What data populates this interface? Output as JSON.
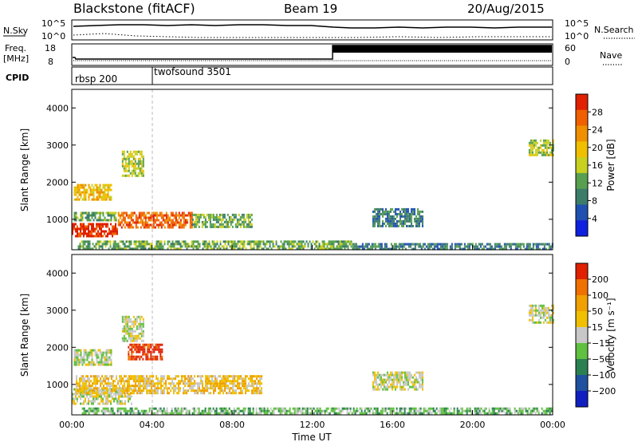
{
  "header": {
    "station": "Blackstone (fitACF)",
    "beam": "Beam 19",
    "date": "20/Aug/2015"
  },
  "params": {
    "nsky_label": "N.Sky",
    "nsearch_label": "N.Search",
    "freq_label_1": "Freq.",
    "freq_label_2": "[MHz]",
    "nave_label": "Nave",
    "cpid_label": "CPID",
    "nsky_ticks": [
      "10^5",
      "10^0"
    ],
    "nsearch_ticks": [
      "10^5",
      "10^0"
    ],
    "freq_ticks": [
      "18",
      "8"
    ],
    "nave_ticks": [
      "60",
      "0"
    ],
    "cpid_segments": [
      {
        "name": "rbsp 200",
        "start_hour": 0
      },
      {
        "name": "twofsound 3501",
        "start_hour": 4
      }
    ]
  },
  "power_colorbar": {
    "label": "Power [dB]",
    "ticks": [
      "28",
      "24",
      "20",
      "16",
      "12",
      "8",
      "4"
    ],
    "colors": [
      "#1020e0",
      "#2050b0",
      "#3c7d6a",
      "#58a050",
      "#c8d020",
      "#f0c000",
      "#f09000",
      "#f06000",
      "#e02000"
    ]
  },
  "velocity_colorbar": {
    "label": "Velocity [m s⁻¹]",
    "ticks": [
      "200",
      "100",
      "50",
      "15",
      "−15",
      "−50",
      "−100",
      "−200"
    ],
    "colors": [
      "#1020c0",
      "#2050a0",
      "#2a8050",
      "#60c040",
      "#c8c8c8",
      "#f0c000",
      "#f0a000",
      "#f07000",
      "#e02000"
    ]
  },
  "chart_data": [
    {
      "type": "heatmap",
      "panel": "power",
      "ylabel": "Slant Range [km]",
      "xlabel": "Time UT",
      "xlim_hours": [
        0,
        24
      ],
      "ylim_km": [
        180,
        4500
      ],
      "x_tick_labels": [
        "00:00",
        "04:00",
        "08:00",
        "12:00",
        "16:00",
        "20:00",
        "00:00"
      ],
      "y_tick_labels": [
        "1000",
        "2000",
        "3000",
        "4000"
      ],
      "y_tick_values": [
        1000,
        2000,
        3000,
        4000
      ],
      "regions": [
        {
          "t0": 0.0,
          "t1": 2.3,
          "r0": 520,
          "r1": 900,
          "level": 8
        },
        {
          "t0": 0.1,
          "t1": 2.2,
          "r0": 1000,
          "r1": 1200,
          "level": 3
        },
        {
          "t0": 0.1,
          "t1": 2.0,
          "r0": 1550,
          "r1": 1950,
          "level": 5
        },
        {
          "t0": 2.3,
          "t1": 6.0,
          "r0": 780,
          "r1": 1200,
          "level": 7
        },
        {
          "t0": 6.0,
          "t1": 9.0,
          "r0": 820,
          "r1": 1150,
          "level": 3
        },
        {
          "t0": 0.3,
          "t1": 14.0,
          "r0": 200,
          "r1": 430,
          "level": 3
        },
        {
          "t0": 14.0,
          "t1": 24.0,
          "r0": 200,
          "r1": 360,
          "level": 2
        },
        {
          "t0": 2.5,
          "t1": 3.6,
          "r0": 2200,
          "r1": 2850,
          "level": 4
        },
        {
          "t0": 15.0,
          "t1": 17.5,
          "r0": 800,
          "r1": 1300,
          "level": 2
        },
        {
          "t0": 22.8,
          "t1": 24.0,
          "r0": 2700,
          "r1": 3150,
          "level": 4
        }
      ]
    },
    {
      "type": "heatmap",
      "panel": "velocity",
      "ylabel": "Slant Range [km]",
      "xlabel": "Time UT",
      "xlim_hours": [
        0,
        24
      ],
      "ylim_km": [
        180,
        4500
      ],
      "x_tick_labels": [
        "00:00",
        "04:00",
        "08:00",
        "12:00",
        "16:00",
        "20:00",
        "00:00"
      ],
      "y_tick_labels": [
        "1000",
        "2000",
        "3000",
        "4000"
      ],
      "y_tick_values": [
        1000,
        2000,
        3000,
        4000
      ],
      "regions": [
        {
          "t0": 0.0,
          "t1": 3.0,
          "r0": 500,
          "r1": 900,
          "level": 4
        },
        {
          "t0": 0.2,
          "t1": 9.5,
          "r0": 780,
          "r1": 1250,
          "level": 5
        },
        {
          "t0": 0.1,
          "t1": 2.0,
          "r0": 1550,
          "r1": 1950,
          "level": 4
        },
        {
          "t0": 2.8,
          "t1": 4.5,
          "r0": 1700,
          "r1": 2100,
          "level": 8
        },
        {
          "t0": 2.5,
          "t1": 3.6,
          "r0": 2200,
          "r1": 2850,
          "level": 4
        },
        {
          "t0": 0.5,
          "t1": 24.0,
          "r0": 200,
          "r1": 380,
          "level": 3
        },
        {
          "t0": 15.0,
          "t1": 17.5,
          "r0": 850,
          "r1": 1350,
          "level": 4
        },
        {
          "t0": 22.8,
          "t1": 24.0,
          "r0": 2650,
          "r1": 3150,
          "level": 4
        }
      ]
    }
  ]
}
